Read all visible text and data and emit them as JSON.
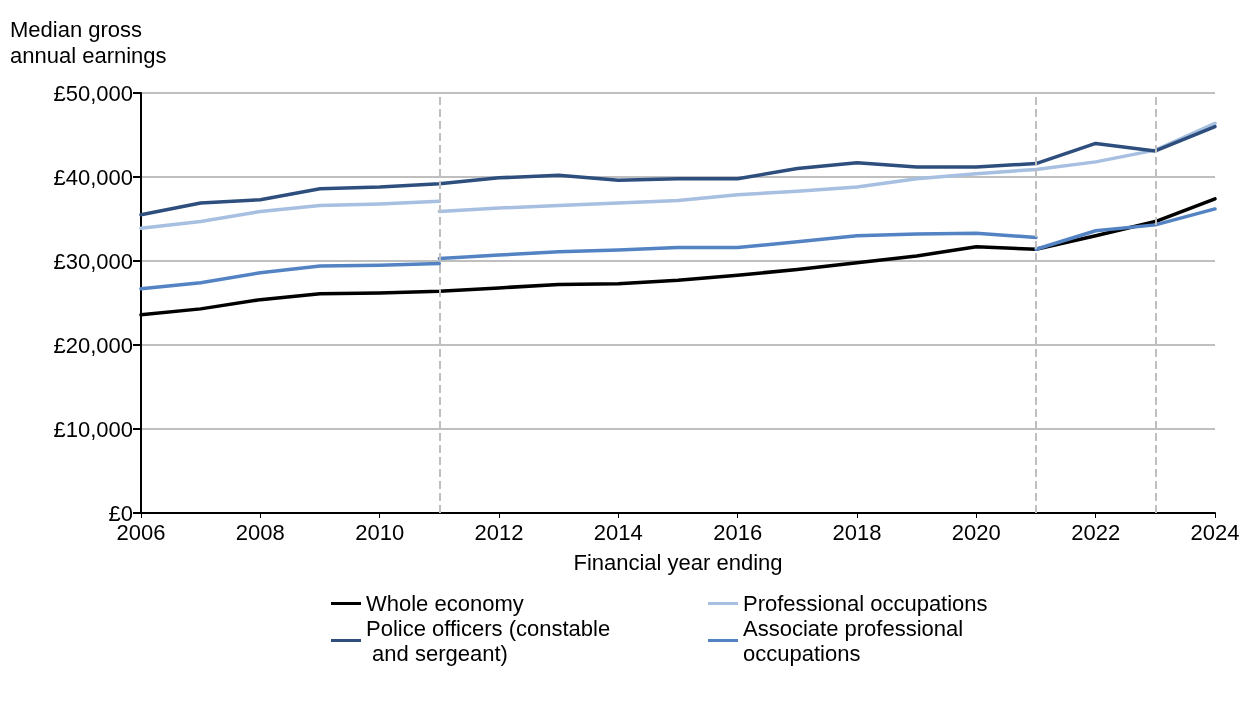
{
  "chart_data": {
    "type": "line",
    "xlabel": "Financial year ending",
    "ylabel": "Median gross annual earnings",
    "x": [
      2006,
      2007,
      2008,
      2009,
      2010,
      2011,
      2012,
      2013,
      2014,
      2015,
      2016,
      2017,
      2018,
      2019,
      2020,
      2021,
      2022,
      2023,
      2024
    ],
    "series": [
      {
        "name": "Whole economy",
        "color": "#000000",
        "values": [
          23600,
          24300,
          25400,
          26100,
          26200,
          26400,
          26800,
          27200,
          27300,
          27700,
          28300,
          29000,
          29800,
          30600,
          31700,
          31400,
          33000,
          34700,
          37400
        ]
      },
      {
        "name": "Professional occupations",
        "color": "#a7bfe0",
        "x": [
          2006,
          2007,
          2008,
          2009,
          2010,
          2011,
          2011,
          2012,
          2013,
          2014,
          2015,
          2016,
          2017,
          2018,
          2019,
          2020,
          2021,
          2022,
          2023,
          2024
        ],
        "values": [
          33900,
          34700,
          35900,
          36600,
          36800,
          37100,
          35900,
          36300,
          36600,
          36900,
          37200,
          37900,
          38300,
          38800,
          39800,
          40400,
          40900,
          41800,
          43200,
          46400
        ]
      },
      {
        "name": "Police officers (constable and sergeant)",
        "color": "#2e4f7e",
        "values": [
          35500,
          36900,
          37300,
          38600,
          38800,
          39200,
          39900,
          40200,
          39600,
          39800,
          39800,
          41000,
          41700,
          41200,
          41200,
          41600,
          44000,
          43100,
          46000
        ]
      },
      {
        "name": "Associate professional occupations",
        "color": "#5383c3",
        "x": [
          2006,
          2007,
          2008,
          2009,
          2010,
          2011,
          2011,
          2012,
          2013,
          2014,
          2015,
          2016,
          2017,
          2018,
          2019,
          2020,
          2021,
          2021,
          2022,
          2023,
          2024
        ],
        "values": [
          26700,
          27400,
          28600,
          29400,
          29500,
          29700,
          30300,
          30700,
          31100,
          31300,
          31600,
          31600,
          32300,
          33000,
          33200,
          33300,
          32800,
          31400,
          33600,
          34300,
          36200
        ]
      }
    ],
    "xlim": [
      2006,
      2024
    ],
    "xticks": [
      2006,
      2008,
      2010,
      2012,
      2014,
      2016,
      2018,
      2020,
      2022,
      2024
    ],
    "ylim": [
      0,
      50000
    ],
    "yticks": [
      {
        "value": 0,
        "label": "£0"
      },
      {
        "value": 10000,
        "label": "£10,000"
      },
      {
        "value": 20000,
        "label": "£20,000"
      },
      {
        "value": 30000,
        "label": "£30,000"
      },
      {
        "value": 40000,
        "label": "£40,000"
      },
      {
        "value": 50000,
        "label": "£50,000"
      }
    ],
    "ref_lines": [
      {
        "axis": "x",
        "value": 2011,
        "color": "#bfbfbf",
        "line_style": "dashed"
      },
      {
        "axis": "x",
        "value": 2021,
        "color": "#bfbfbf",
        "line_style": "dashed"
      },
      {
        "axis": "x",
        "value": 2023,
        "color": "#bfbfbf",
        "line_style": "dashed"
      }
    ],
    "grid": "y",
    "legend": "bottom",
    "marker": "none",
    "line_style": "solid"
  }
}
